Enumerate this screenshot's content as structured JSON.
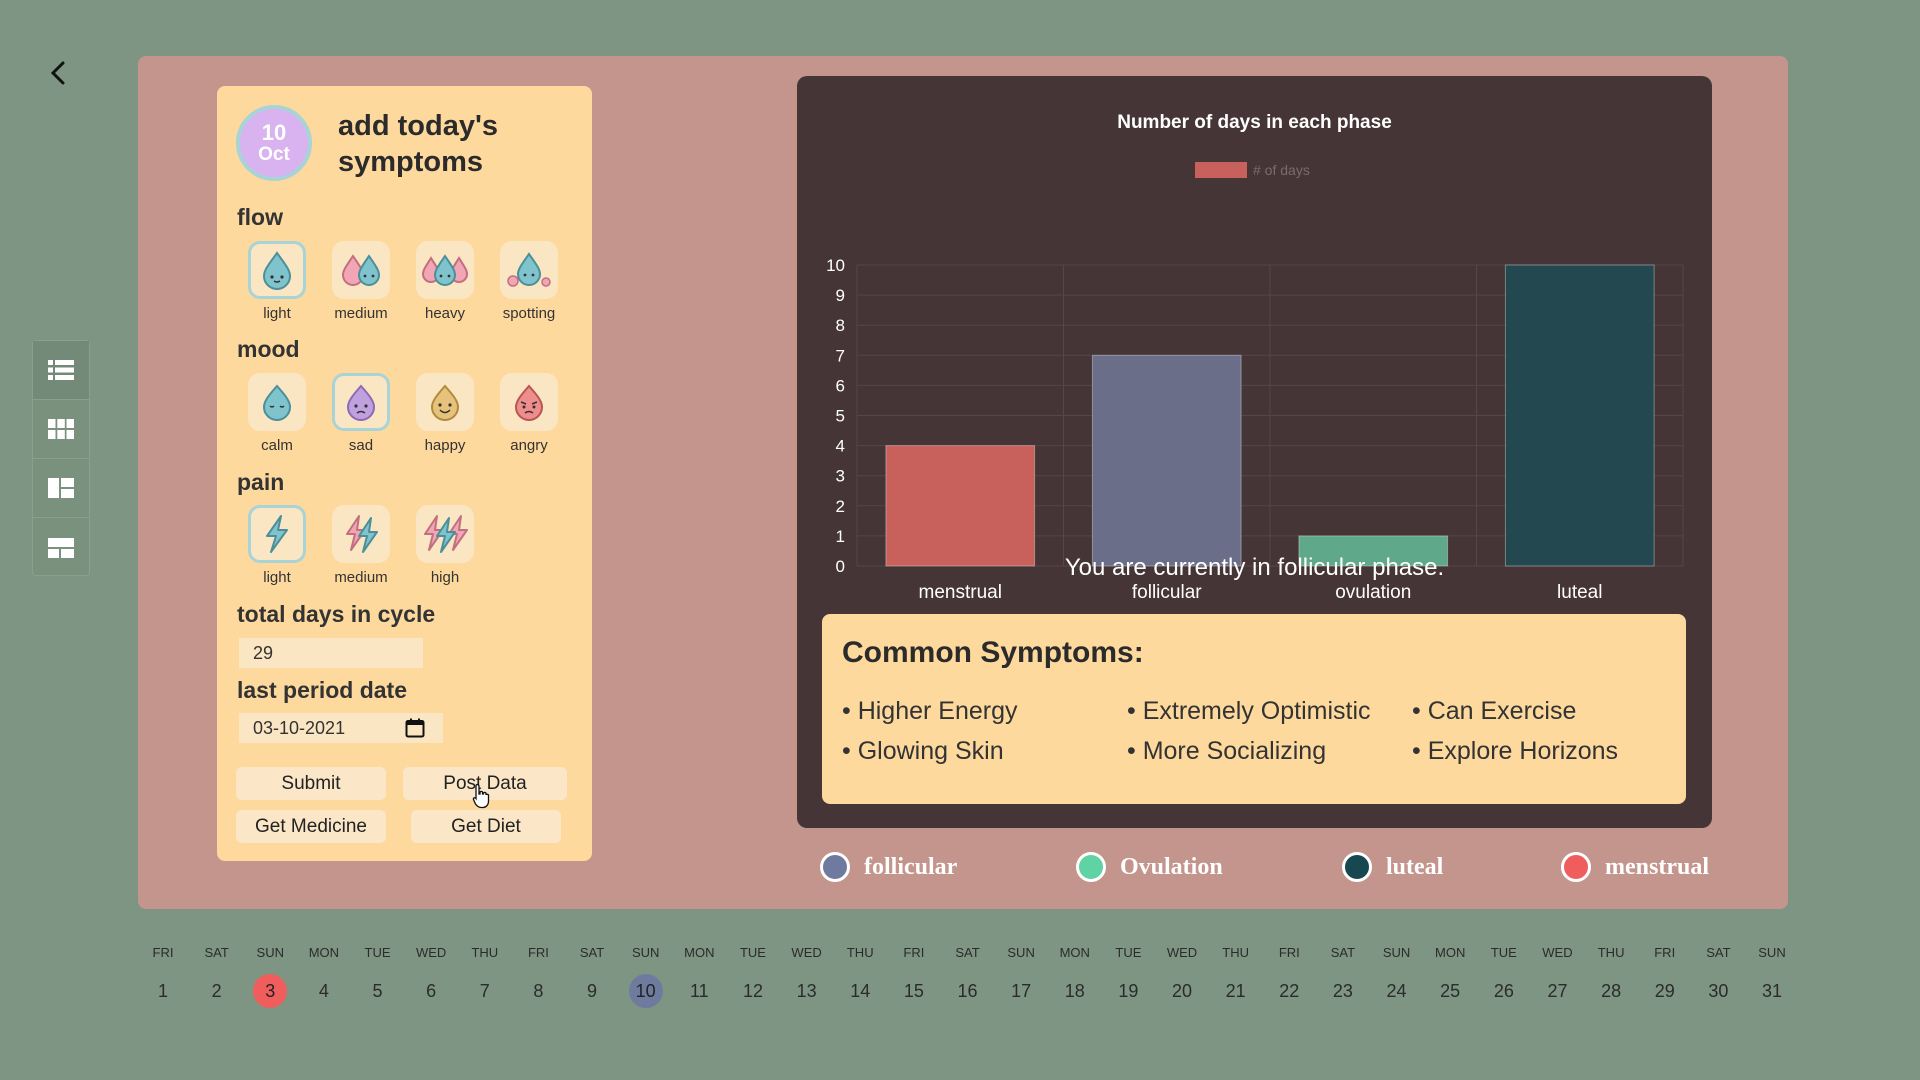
{
  "nav": {
    "back": "chevron-left-icon",
    "rail": [
      "list-icon",
      "grid-icon",
      "dashboard-icon",
      "layout-icon"
    ]
  },
  "symptoms": {
    "date_day": "10",
    "date_month": "Oct",
    "title": "add today's symptoms",
    "flow_label": "flow",
    "flow": [
      {
        "label": "light",
        "selected": true
      },
      {
        "label": "medium",
        "selected": false
      },
      {
        "label": "heavy",
        "selected": false
      },
      {
        "label": "spotting",
        "selected": false
      }
    ],
    "mood_label": "mood",
    "mood": [
      {
        "label": "calm",
        "selected": false
      },
      {
        "label": "sad",
        "selected": true
      },
      {
        "label": "happy",
        "selected": false
      },
      {
        "label": "angry",
        "selected": false
      }
    ],
    "pain_label": "pain",
    "pain": [
      {
        "label": "light",
        "selected": true
      },
      {
        "label": "medium",
        "selected": false
      },
      {
        "label": "high",
        "selected": false
      }
    ],
    "cycle_label": "total days in cycle",
    "cycle_value": "29",
    "period_label": "last period date",
    "period_value": "03-10-2021",
    "buttons": {
      "submit": "Submit",
      "post": "Post Data",
      "medicine": "Get Medicine",
      "diet": "Get Diet"
    }
  },
  "chart_data": {
    "type": "bar",
    "title": "Number of days in each phase",
    "legend": "# of days",
    "categories": [
      "menstrual",
      "follicular",
      "ovulation",
      "luteal"
    ],
    "values": [
      4,
      7,
      1,
      10
    ],
    "colors": [
      "#c8605c",
      "#6b6e88",
      "#5fa98a",
      "#23484f"
    ],
    "ylim": [
      0,
      10
    ],
    "yticks": [
      0,
      1,
      2,
      3,
      4,
      5,
      6,
      7,
      8,
      9,
      10
    ],
    "grid": true
  },
  "phase_message": "You are currently in follicular phase.",
  "common": {
    "title": "Common Symptoms:",
    "items": [
      "• Higher Energy",
      "• Extremely Optimistic",
      "• Can Exercise",
      "• Glowing Skin",
      "• More Socializing",
      "• Explore Horizons"
    ]
  },
  "phase_legend": [
    {
      "name": "follicular",
      "color": "#6e7b9f"
    },
    {
      "name": "Ovulation",
      "color": "#5fd3a3"
    },
    {
      "name": "luteal",
      "color": "#17474f"
    },
    {
      "name": "menstrual",
      "color": "#f05d5d"
    }
  ],
  "calendar": {
    "days": [
      {
        "dow": "FRI",
        "n": "1"
      },
      {
        "dow": "SAT",
        "n": "2"
      },
      {
        "dow": "SUN",
        "n": "3",
        "hl": "red"
      },
      {
        "dow": "MON",
        "n": "4"
      },
      {
        "dow": "TUE",
        "n": "5"
      },
      {
        "dow": "WED",
        "n": "6"
      },
      {
        "dow": "THU",
        "n": "7"
      },
      {
        "dow": "FRI",
        "n": "8"
      },
      {
        "dow": "SAT",
        "n": "9"
      },
      {
        "dow": "SUN",
        "n": "10",
        "hl": "blue"
      },
      {
        "dow": "MON",
        "n": "11"
      },
      {
        "dow": "TUE",
        "n": "12"
      },
      {
        "dow": "WED",
        "n": "13"
      },
      {
        "dow": "THU",
        "n": "14"
      },
      {
        "dow": "FRI",
        "n": "15"
      },
      {
        "dow": "SAT",
        "n": "16"
      },
      {
        "dow": "SUN",
        "n": "17"
      },
      {
        "dow": "MON",
        "n": "18"
      },
      {
        "dow": "TUE",
        "n": "19"
      },
      {
        "dow": "WED",
        "n": "20"
      },
      {
        "dow": "THU",
        "n": "21"
      },
      {
        "dow": "FRI",
        "n": "22"
      },
      {
        "dow": "SAT",
        "n": "23"
      },
      {
        "dow": "SUN",
        "n": "24"
      },
      {
        "dow": "MON",
        "n": "25"
      },
      {
        "dow": "TUE",
        "n": "26"
      },
      {
        "dow": "WED",
        "n": "27"
      },
      {
        "dow": "THU",
        "n": "28"
      },
      {
        "dow": "FRI",
        "n": "29"
      },
      {
        "dow": "SAT",
        "n": "30"
      },
      {
        "dow": "SUN",
        "n": "31"
      }
    ]
  }
}
